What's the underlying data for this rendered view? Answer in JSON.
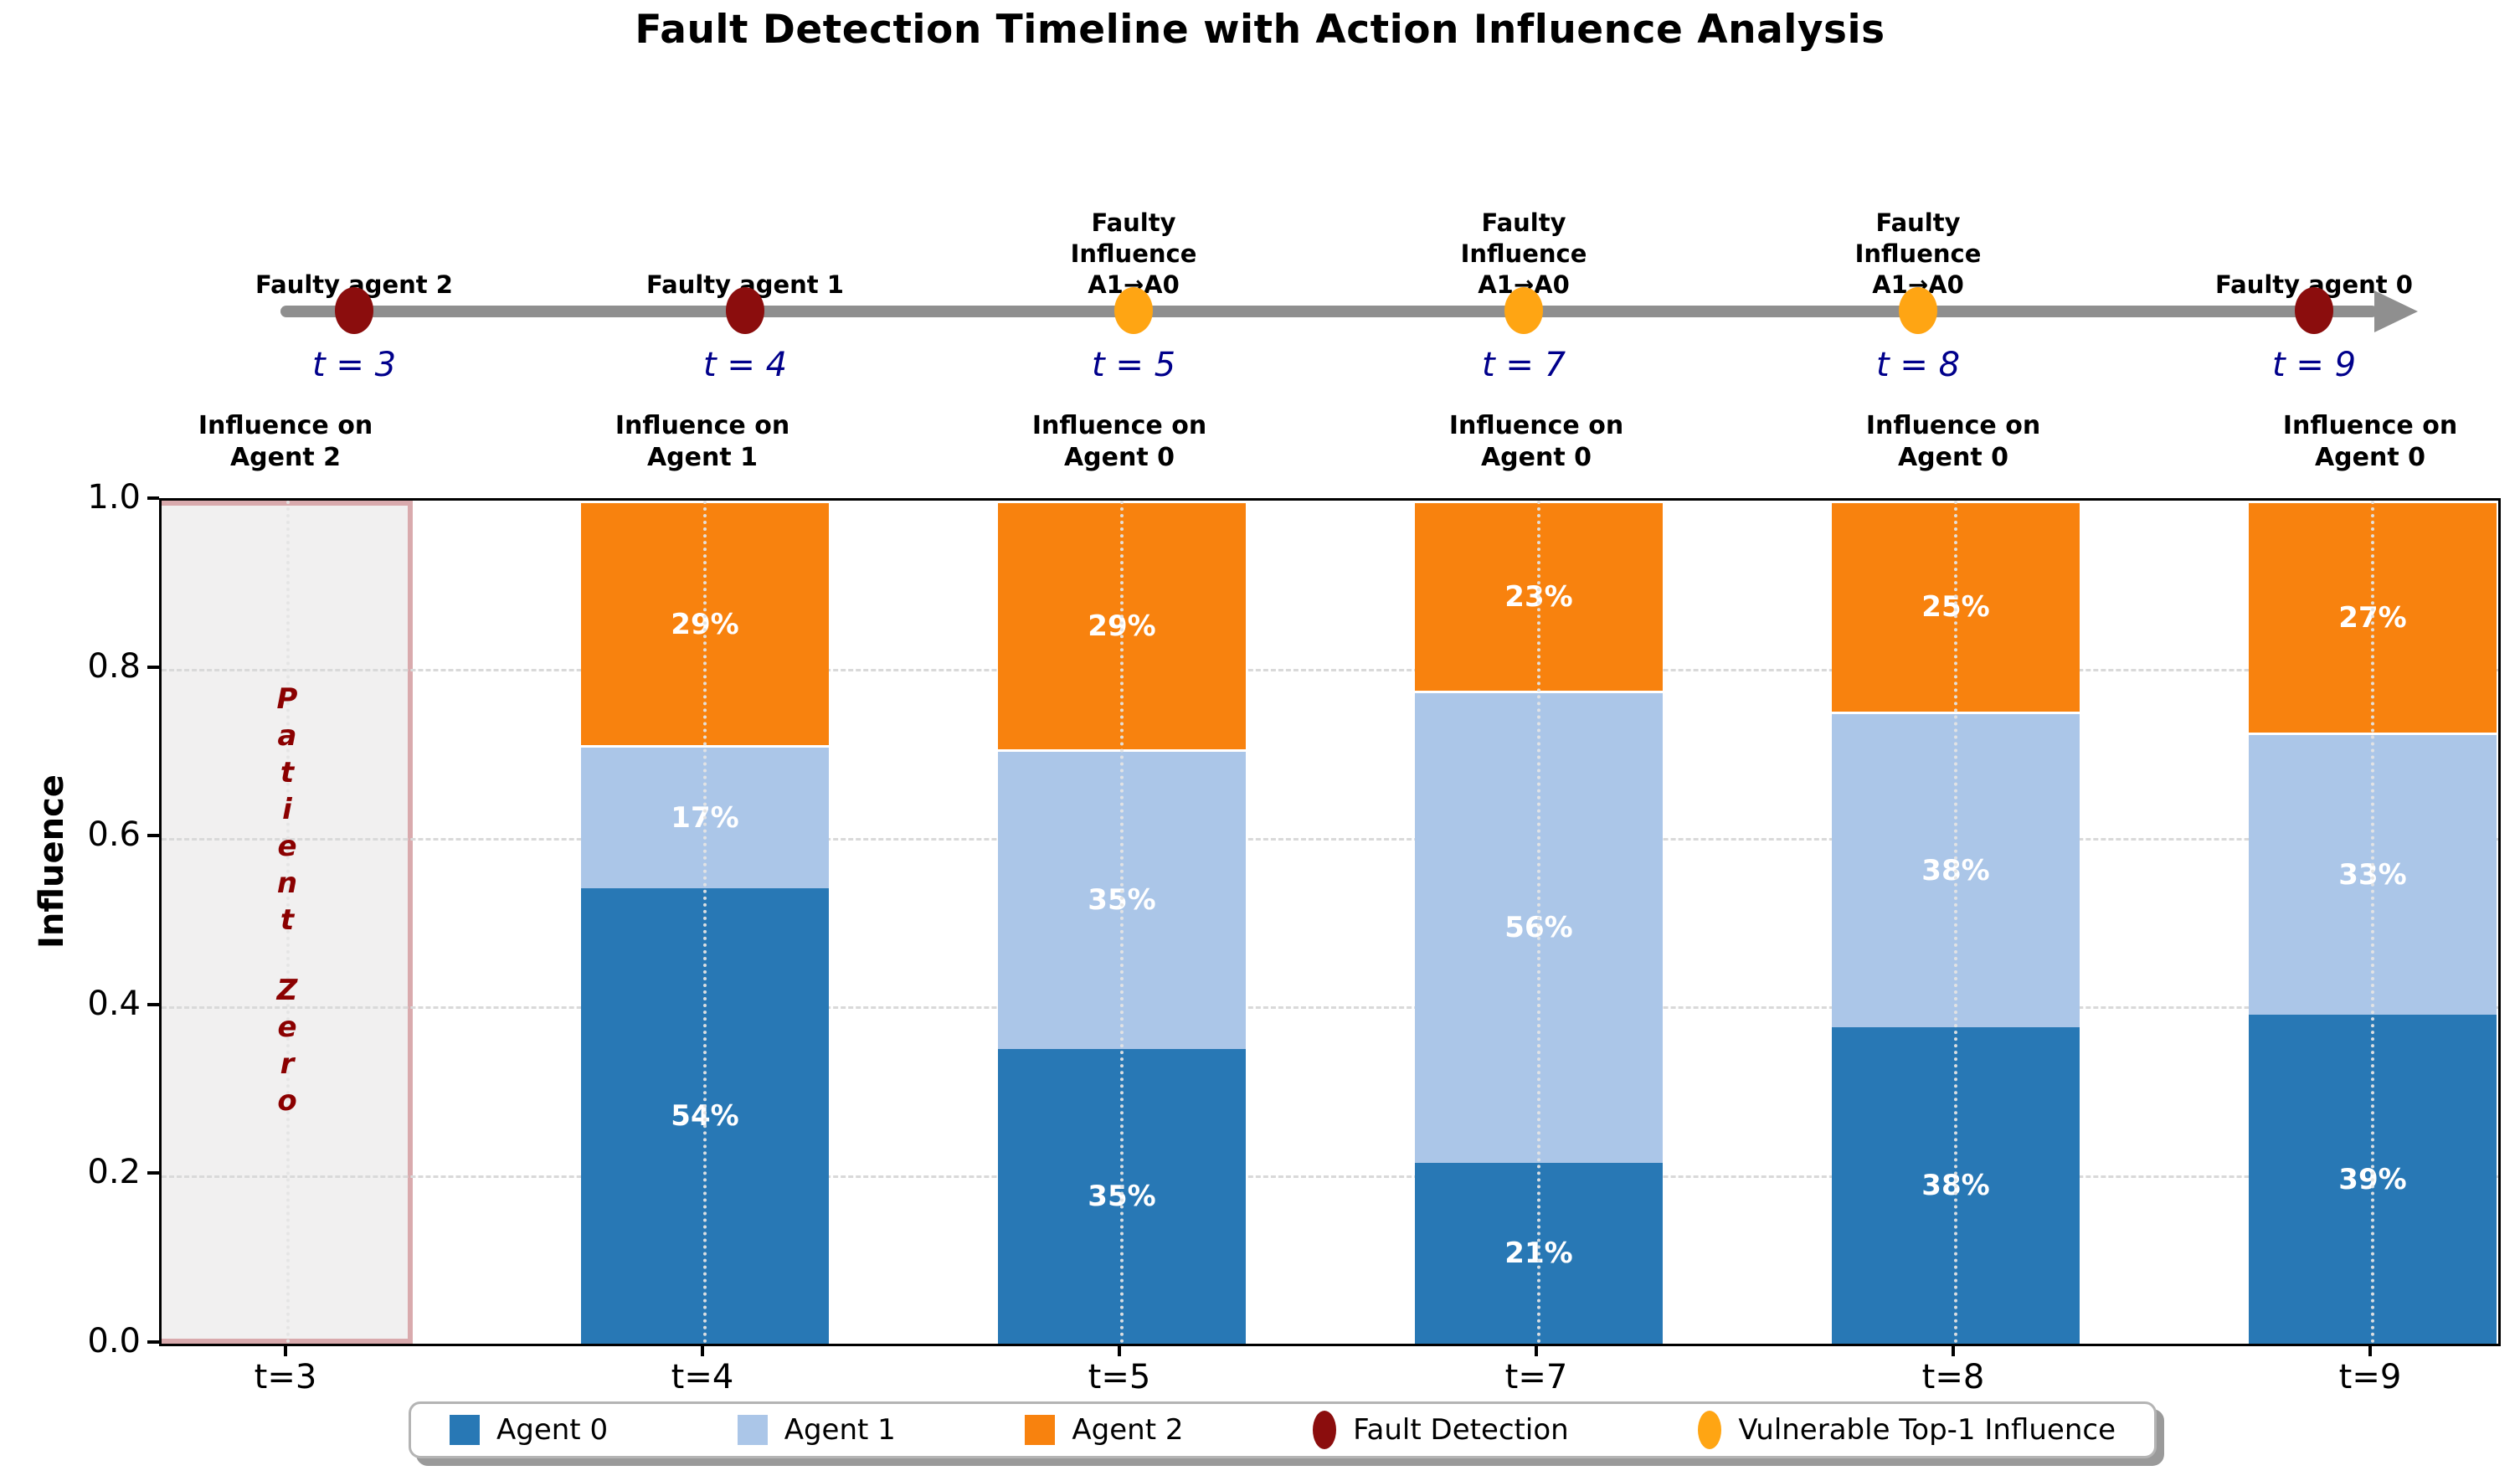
{
  "title": "Fault Detection Timeline with Action Influence Analysis",
  "timeline": {
    "events": [
      {
        "time_label": "t = 3",
        "event_label": "Faulty agent 2",
        "marker": "fault-detection"
      },
      {
        "time_label": "t = 4",
        "event_label": "Faulty agent 1",
        "marker": "fault-detection"
      },
      {
        "time_label": "t = 5",
        "event_label": "Faulty\nInfluence\nA1→A0",
        "marker": "vulnerable-top1"
      },
      {
        "time_label": "t = 7",
        "event_label": "Faulty\nInfluence\nA1→A0",
        "marker": "vulnerable-top1"
      },
      {
        "time_label": "t = 8",
        "event_label": "Faulty\nInfluence\nA1→A0",
        "marker": "vulnerable-top1"
      },
      {
        "time_label": "t = 9",
        "event_label": "Faulty agent 0",
        "marker": "fault-detection"
      }
    ]
  },
  "chart_data": {
    "type": "bar",
    "stacked": true,
    "title": "Fault Detection Timeline with Action Influence Analysis",
    "categories": [
      "t=3",
      "t=4",
      "t=5",
      "t=7",
      "t=8",
      "t=9"
    ],
    "column_headers": [
      "Influence on\nAgent 2",
      "Influence on\nAgent 1",
      "Influence on\nAgent 0",
      "Influence on\nAgent 0",
      "Influence on\nAgent 0",
      "Influence on\nAgent 0"
    ],
    "series": [
      {
        "name": "Agent 0",
        "color": "#2878b5",
        "values": [
          null,
          0.54,
          0.35,
          0.215,
          0.375,
          0.39
        ],
        "labels": [
          "",
          "54%",
          "35%",
          "21%",
          "38%",
          "39%"
        ]
      },
      {
        "name": "Agent 1",
        "color": "#abc6e8",
        "values": [
          null,
          0.17,
          0.355,
          0.56,
          0.375,
          0.335
        ],
        "labels": [
          "",
          "17%",
          "35%",
          "56%",
          "38%",
          "33%"
        ]
      },
      {
        "name": "Agent 2",
        "color": "#f8820e",
        "values": [
          null,
          0.29,
          0.295,
          0.225,
          0.25,
          0.275
        ],
        "labels": [
          "",
          "29%",
          "29%",
          "23%",
          "25%",
          "27%"
        ]
      }
    ],
    "ylabel": "Influence",
    "ylim": [
      0.0,
      1.0
    ],
    "yticks": [
      "0.0",
      "0.2",
      "0.4",
      "0.6",
      "0.8",
      "1.0"
    ],
    "grid": "horizontal-dashed",
    "legend_position": "bottom-center",
    "annotations": [
      {
        "text": "Patient Zero",
        "column": "t=3",
        "style": "vertical-stacked-letters"
      }
    ]
  },
  "legend": {
    "items": [
      {
        "label": "Agent 0",
        "swatch": "square",
        "color": "#2878b5"
      },
      {
        "label": "Agent 1",
        "swatch": "square",
        "color": "#abc6e8"
      },
      {
        "label": "Agent 2",
        "swatch": "square",
        "color": "#f8820e"
      },
      {
        "label": "Fault Detection",
        "swatch": "ellipse",
        "color": "#8b0d0d"
      },
      {
        "label": "Vulnerable Top-1 Influence",
        "swatch": "ellipse",
        "color": "#ffa513"
      }
    ]
  },
  "colors": {
    "fault-detection": "#8b0d0d",
    "vulnerable-top1": "#ffa513",
    "timeline-line": "#8f8f8f",
    "time-label": "#00008b",
    "patient-zero-text": "#8b0000",
    "shaded-region-fill": "#f1f0f0",
    "shaded-region-border": "#d9aaad"
  }
}
